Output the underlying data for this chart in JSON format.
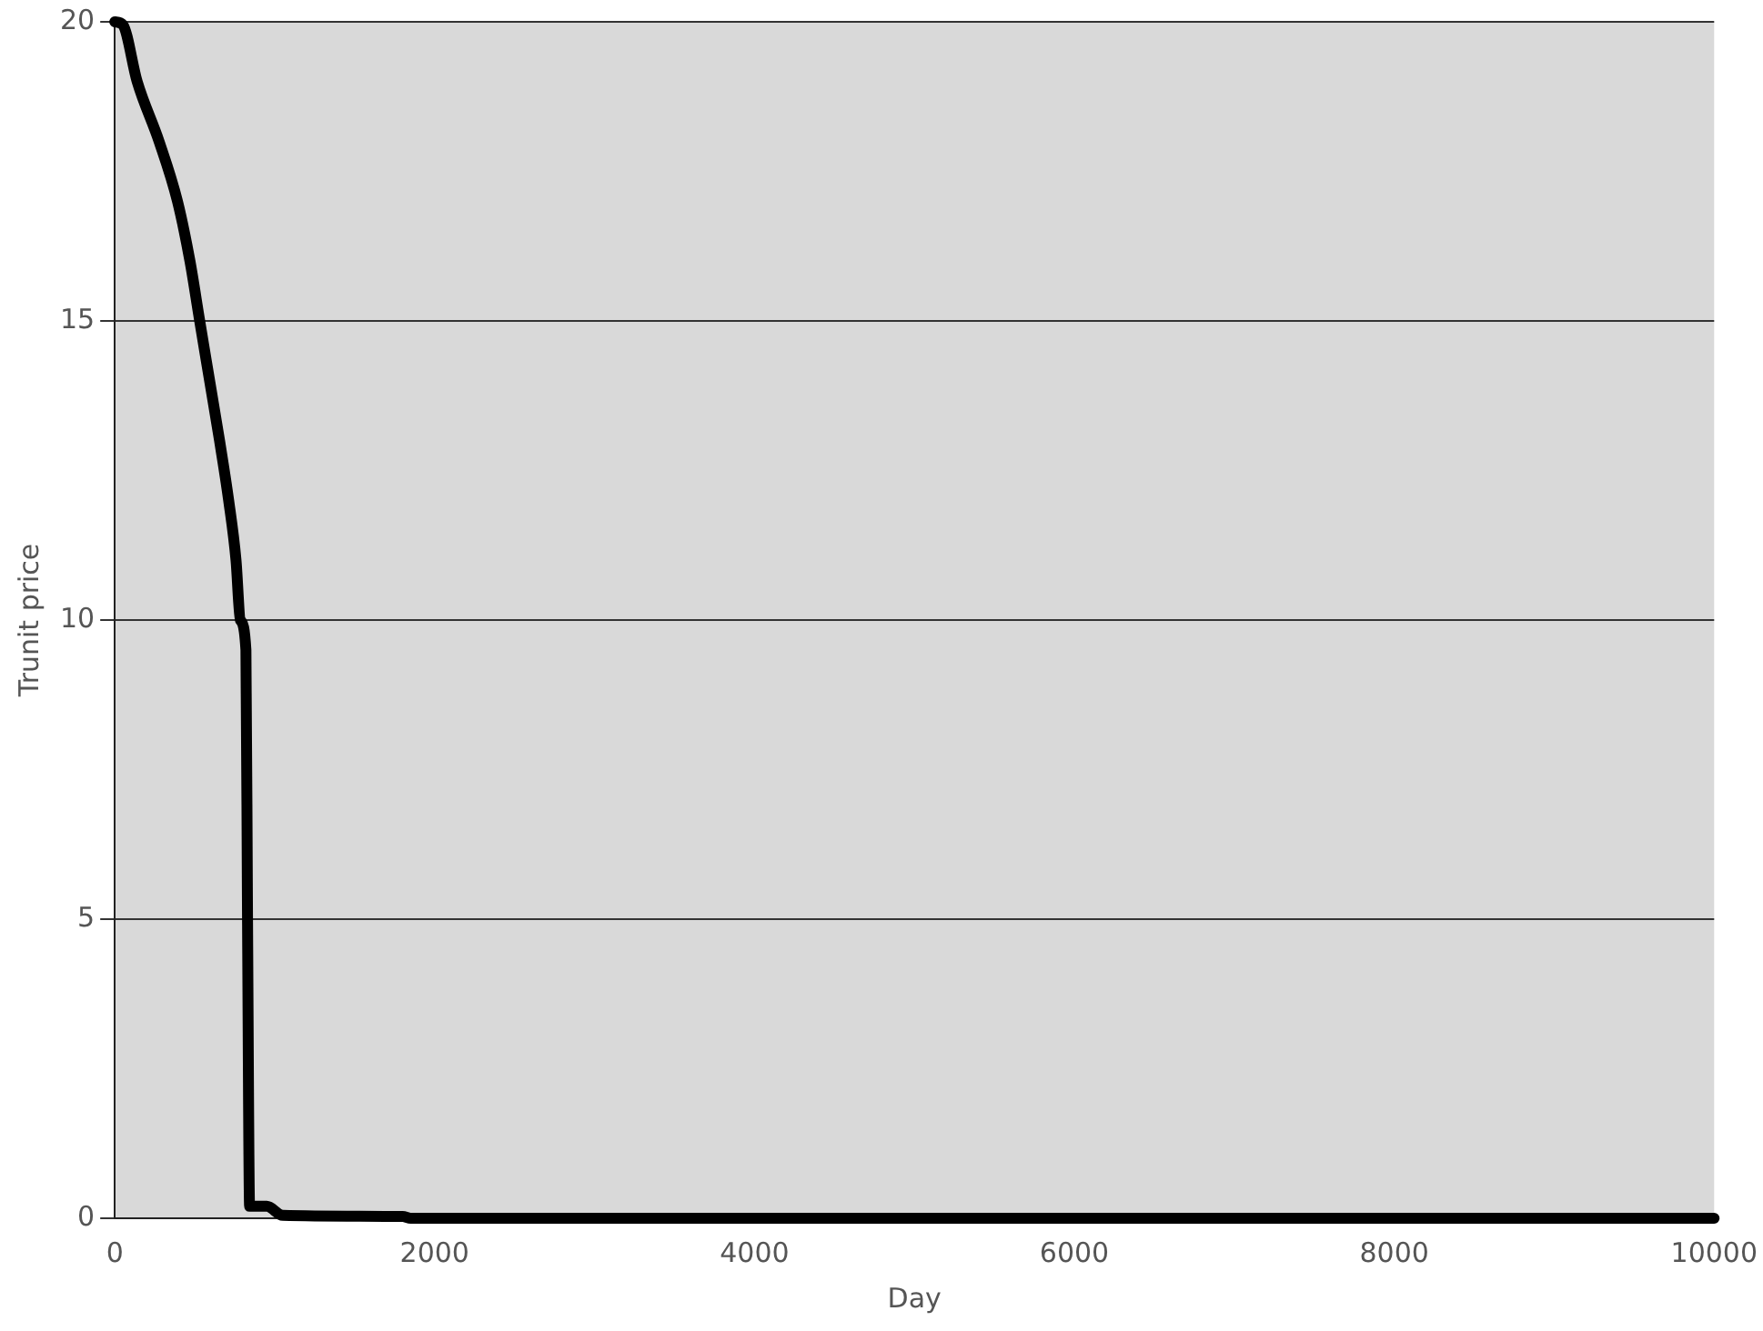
{
  "chart_data": {
    "type": "line",
    "xlabel": "Day",
    "ylabel": "Trunit price",
    "x": [
      0,
      50,
      140,
      277,
      392,
      470,
      531,
      593,
      655,
      712,
      758,
      785,
      820,
      830,
      843,
      950,
      1050,
      1800,
      1850,
      10000
    ],
    "series": [
      {
        "color": "#000000",
        "values": [
          20,
          19.95,
          19,
          18,
          17,
          16,
          15,
          14,
          13,
          12,
          11,
          10,
          9.5,
          5,
          0.2,
          0.2,
          0.05,
          0.03,
          0,
          0
        ]
      }
    ],
    "xlim": [
      0,
      10000
    ],
    "xticks": [
      0,
      2000,
      4000,
      6000,
      8000,
      10000
    ],
    "ylim": [
      0,
      20
    ],
    "yticks": [
      0,
      5,
      10,
      15,
      20
    ],
    "grid": "y",
    "legend": false,
    "marker": "none",
    "line_style": "solid"
  }
}
